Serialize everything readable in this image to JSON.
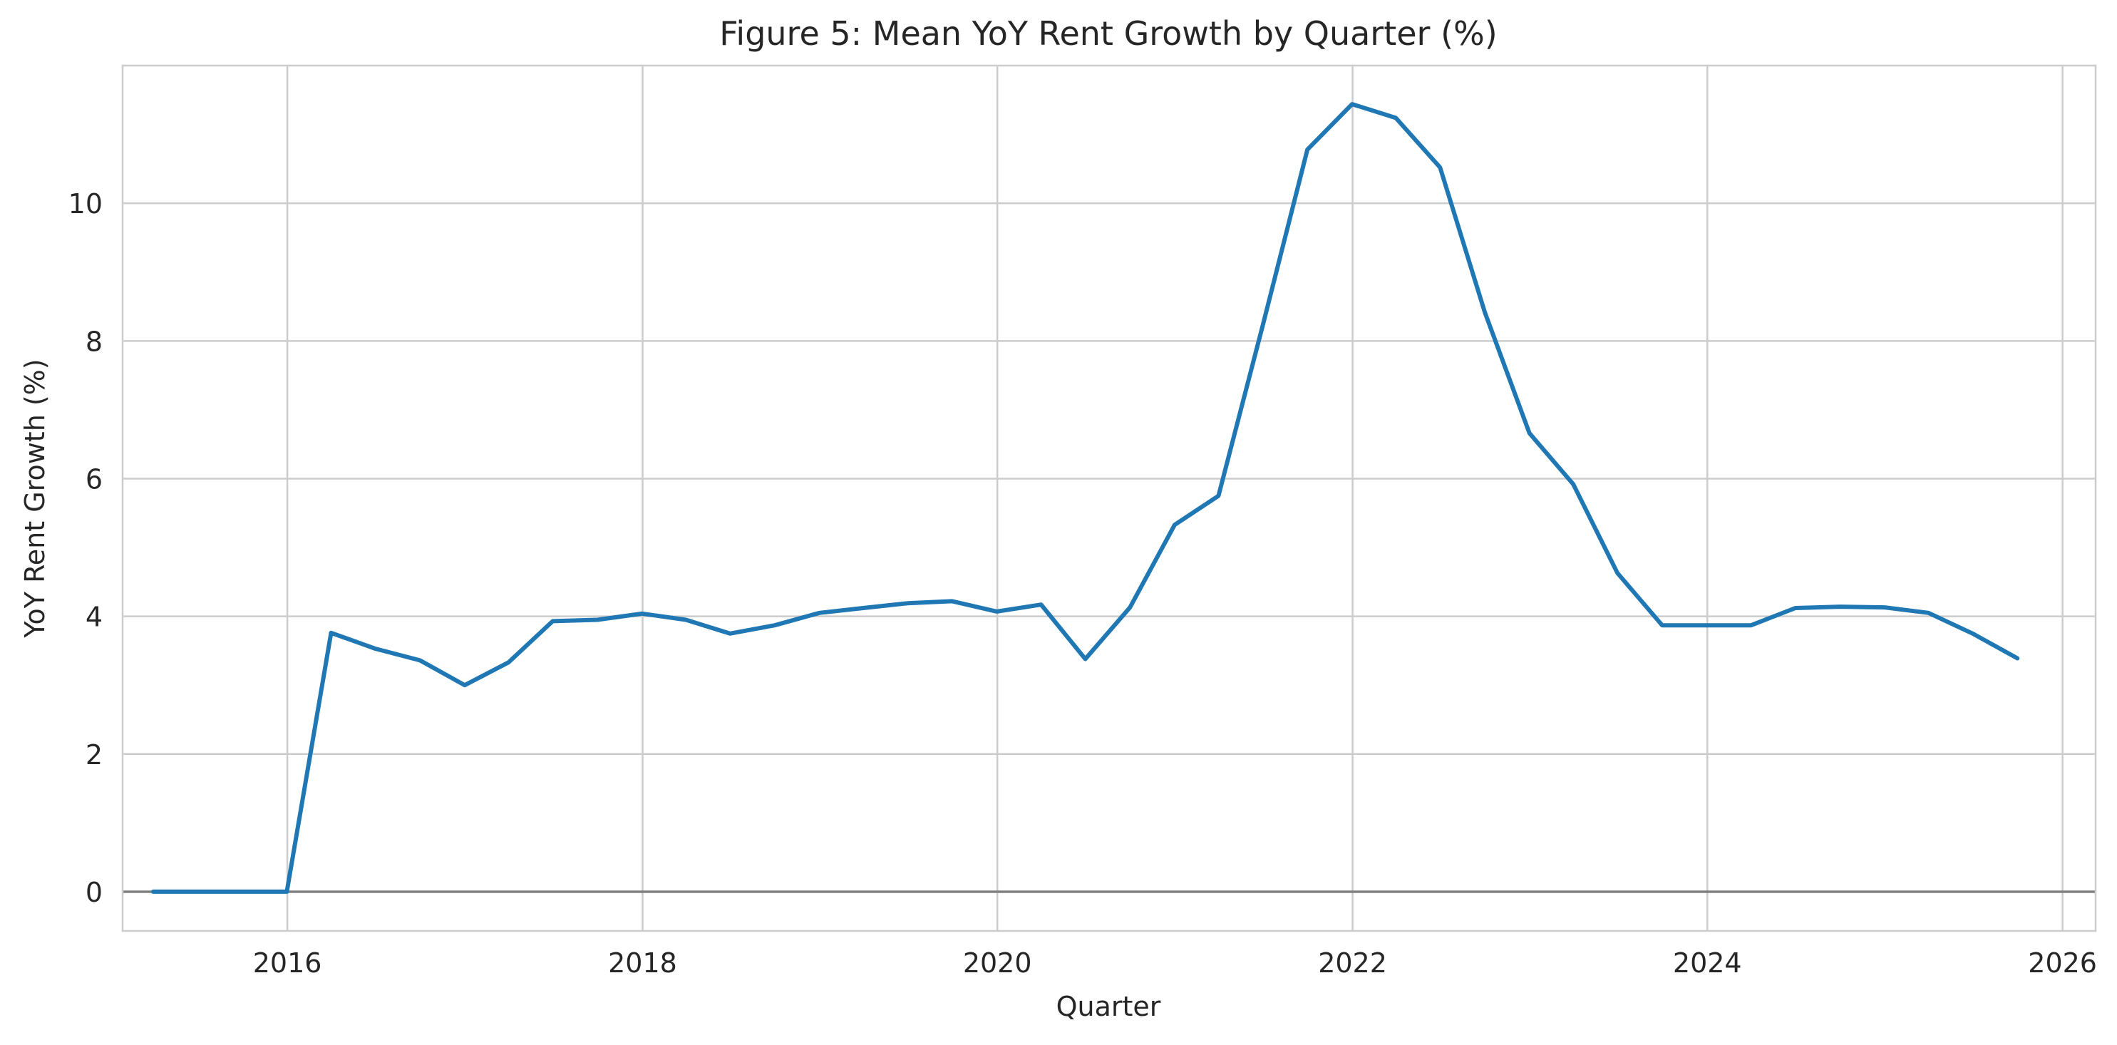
{
  "chart_data": {
    "type": "line",
    "title": "Figure 5: Mean YoY Rent Growth by Quarter (%)",
    "xlabel": "Quarter",
    "ylabel": "YoY Rent Growth (%)",
    "xlim": [
      "2015-01-27",
      "2026-03-10"
    ],
    "ylim": [
      -0.57,
      12.0
    ],
    "x_ticks": [
      "2016",
      "2018",
      "2020",
      "2022",
      "2024",
      "2026"
    ],
    "y_ticks": [
      0,
      2,
      4,
      6,
      8,
      10
    ],
    "grid": true,
    "reference_line": {
      "y": 0
    },
    "series": [
      {
        "color": "#1f77b4",
        "x": [
          "2015-03-31",
          "2015-06-30",
          "2015-09-30",
          "2015-12-31",
          "2016-03-31",
          "2016-06-30",
          "2016-09-30",
          "2016-12-31",
          "2017-03-31",
          "2017-06-30",
          "2017-09-30",
          "2017-12-31",
          "2018-03-31",
          "2018-06-30",
          "2018-09-30",
          "2018-12-31",
          "2019-03-31",
          "2019-06-30",
          "2019-09-30",
          "2019-12-31",
          "2020-03-31",
          "2020-06-30",
          "2020-09-30",
          "2020-12-31",
          "2021-03-31",
          "2021-06-30",
          "2021-09-30",
          "2021-12-31",
          "2022-03-31",
          "2022-06-30",
          "2022-09-30",
          "2022-12-31",
          "2023-03-31",
          "2023-06-30",
          "2023-09-30",
          "2023-12-31",
          "2024-03-31",
          "2024-06-30",
          "2024-09-30",
          "2024-12-31",
          "2025-03-31",
          "2025-06-30",
          "2025-09-30"
        ],
        "values": [
          0.0,
          0.0,
          0.0,
          0.0,
          3.76,
          3.53,
          3.36,
          3.0,
          3.33,
          3.93,
          3.95,
          4.04,
          3.95,
          3.75,
          3.87,
          4.05,
          4.12,
          4.19,
          4.22,
          4.07,
          4.17,
          3.38,
          4.13,
          5.33,
          5.75,
          8.22,
          10.78,
          11.44,
          11.24,
          10.52,
          8.42,
          6.66,
          5.92,
          4.63,
          3.87,
          3.87,
          3.87,
          4.12,
          4.14,
          4.13,
          4.05,
          3.75,
          3.39
        ]
      }
    ]
  }
}
